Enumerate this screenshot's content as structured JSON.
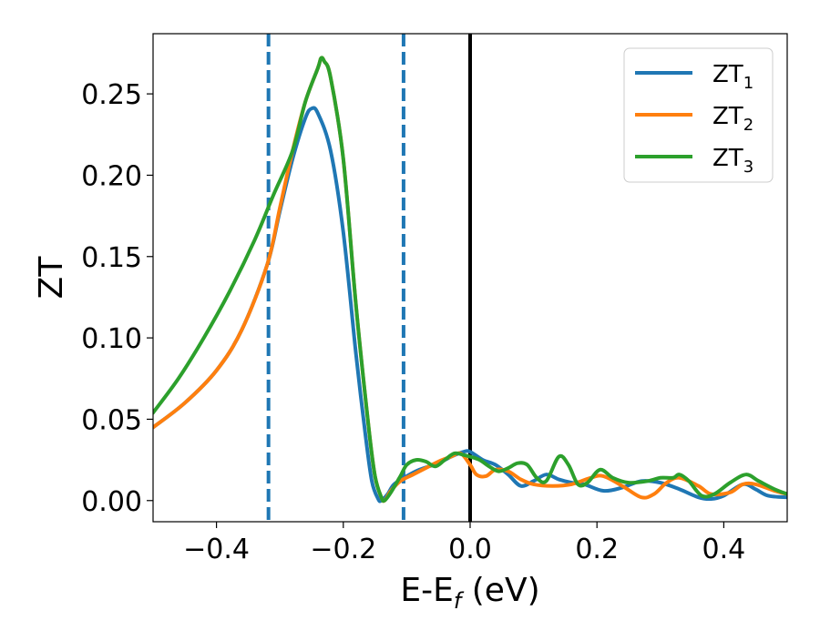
{
  "chart_data": {
    "type": "line",
    "title": "",
    "xlabel_main": "E-E",
    "xlabel_sub": "f",
    "xlabel_unit": " (eV)",
    "ylabel": "ZT",
    "xlim": [
      -0.5,
      0.5
    ],
    "ylim": [
      -0.013,
      0.287
    ],
    "x_ticks": [
      -0.4,
      -0.2,
      0.0,
      0.2,
      0.4
    ],
    "x_tick_labels": [
      "−0.4",
      "−0.2",
      "0.0",
      "0.2",
      "0.4"
    ],
    "y_ticks": [
      0.0,
      0.05,
      0.1,
      0.15,
      0.2,
      0.25
    ],
    "y_tick_labels": [
      "0.00",
      "0.05",
      "0.10",
      "0.15",
      "0.20",
      "0.25"
    ],
    "grid": false,
    "legend_position": "top-right",
    "reference_lines": [
      {
        "x": -0.318,
        "style": "dashed",
        "color": "#1f77b4"
      },
      {
        "x": -0.105,
        "style": "dashed",
        "color": "#1f77b4"
      },
      {
        "x": 0.0,
        "style": "solid",
        "color": "#000000"
      }
    ],
    "series": [
      {
        "name": "ZT",
        "sub": "1",
        "color": "#1f77b4",
        "points": [
          [
            -0.5,
            0.045
          ],
          [
            -0.45,
            0.06
          ],
          [
            -0.4,
            0.08
          ],
          [
            -0.36,
            0.105
          ],
          [
            -0.32,
            0.145
          ],
          [
            -0.3,
            0.178
          ],
          [
            -0.28,
            0.21
          ],
          [
            -0.26,
            0.235
          ],
          [
            -0.25,
            0.241
          ],
          [
            -0.24,
            0.238
          ],
          [
            -0.22,
            0.215
          ],
          [
            -0.2,
            0.165
          ],
          [
            -0.18,
            0.09
          ],
          [
            -0.165,
            0.04
          ],
          [
            -0.155,
            0.012
          ],
          [
            -0.145,
            0.001
          ],
          [
            -0.14,
            0.0
          ],
          [
            -0.13,
            0.004
          ],
          [
            -0.12,
            0.01
          ],
          [
            -0.1,
            0.015
          ],
          [
            -0.08,
            0.019
          ],
          [
            -0.05,
            0.023
          ],
          [
            -0.03,
            0.027
          ],
          [
            -0.01,
            0.03
          ],
          [
            0.0,
            0.03
          ],
          [
            0.02,
            0.025
          ],
          [
            0.04,
            0.022
          ],
          [
            0.06,
            0.016
          ],
          [
            0.08,
            0.009
          ],
          [
            0.1,
            0.012
          ],
          [
            0.12,
            0.016
          ],
          [
            0.14,
            0.013
          ],
          [
            0.16,
            0.011
          ],
          [
            0.18,
            0.01
          ],
          [
            0.21,
            0.006
          ],
          [
            0.24,
            0.008
          ],
          [
            0.27,
            0.012
          ],
          [
            0.3,
            0.011
          ],
          [
            0.33,
            0.007
          ],
          [
            0.36,
            0.002
          ],
          [
            0.38,
            0.001
          ],
          [
            0.4,
            0.003
          ],
          [
            0.43,
            0.01
          ],
          [
            0.45,
            0.007
          ],
          [
            0.47,
            0.003
          ],
          [
            0.5,
            0.002
          ]
        ]
      },
      {
        "name": "ZT",
        "sub": "2",
        "color": "#ff7f0e",
        "points": [
          [
            -0.5,
            0.045
          ],
          [
            -0.45,
            0.06
          ],
          [
            -0.4,
            0.08
          ],
          [
            -0.36,
            0.105
          ],
          [
            -0.32,
            0.145
          ],
          [
            -0.3,
            0.18
          ],
          [
            -0.28,
            0.215
          ],
          [
            -0.26,
            0.245
          ],
          [
            -0.24,
            0.266
          ],
          [
            -0.235,
            0.272
          ],
          [
            -0.23,
            0.27
          ],
          [
            -0.22,
            0.26
          ],
          [
            -0.2,
            0.21
          ],
          [
            -0.18,
            0.12
          ],
          [
            -0.16,
            0.045
          ],
          [
            -0.15,
            0.015
          ],
          [
            -0.14,
            0.002
          ],
          [
            -0.135,
            0.0
          ],
          [
            -0.125,
            0.006
          ],
          [
            -0.11,
            0.012
          ],
          [
            -0.09,
            0.016
          ],
          [
            -0.07,
            0.02
          ],
          [
            -0.05,
            0.024
          ],
          [
            -0.03,
            0.027
          ],
          [
            -0.015,
            0.029
          ],
          [
            0.0,
            0.022
          ],
          [
            0.01,
            0.016
          ],
          [
            0.025,
            0.015
          ],
          [
            0.04,
            0.019
          ],
          [
            0.06,
            0.018
          ],
          [
            0.08,
            0.013
          ],
          [
            0.1,
            0.01
          ],
          [
            0.13,
            0.009
          ],
          [
            0.16,
            0.01
          ],
          [
            0.19,
            0.014
          ],
          [
            0.21,
            0.015
          ],
          [
            0.24,
            0.009
          ],
          [
            0.27,
            0.002
          ],
          [
            0.29,
            0.004
          ],
          [
            0.31,
            0.011
          ],
          [
            0.33,
            0.014
          ],
          [
            0.36,
            0.009
          ],
          [
            0.38,
            0.004
          ],
          [
            0.41,
            0.005
          ],
          [
            0.43,
            0.01
          ],
          [
            0.45,
            0.01
          ],
          [
            0.48,
            0.006
          ],
          [
            0.5,
            0.004
          ]
        ]
      },
      {
        "name": "ZT",
        "sub": "3",
        "color": "#2ca02c",
        "points": [
          [
            -0.5,
            0.054
          ],
          [
            -0.46,
            0.075
          ],
          [
            -0.42,
            0.1
          ],
          [
            -0.38,
            0.128
          ],
          [
            -0.34,
            0.16
          ],
          [
            -0.31,
            0.188
          ],
          [
            -0.28,
            0.215
          ],
          [
            -0.26,
            0.245
          ],
          [
            -0.24,
            0.266
          ],
          [
            -0.235,
            0.272
          ],
          [
            -0.23,
            0.27
          ],
          [
            -0.22,
            0.26
          ],
          [
            -0.2,
            0.21
          ],
          [
            -0.18,
            0.12
          ],
          [
            -0.16,
            0.045
          ],
          [
            -0.15,
            0.015
          ],
          [
            -0.14,
            0.002
          ],
          [
            -0.135,
            0.0
          ],
          [
            -0.125,
            0.005
          ],
          [
            -0.11,
            0.015
          ],
          [
            -0.1,
            0.022
          ],
          [
            -0.085,
            0.025
          ],
          [
            -0.07,
            0.024
          ],
          [
            -0.055,
            0.021
          ],
          [
            -0.04,
            0.025
          ],
          [
            -0.025,
            0.029
          ],
          [
            -0.01,
            0.028
          ],
          [
            0.0,
            0.027
          ],
          [
            0.015,
            0.025
          ],
          [
            0.03,
            0.021
          ],
          [
            0.045,
            0.018
          ],
          [
            0.06,
            0.02
          ],
          [
            0.075,
            0.023
          ],
          [
            0.09,
            0.022
          ],
          [
            0.105,
            0.014
          ],
          [
            0.12,
            0.012
          ],
          [
            0.14,
            0.027
          ],
          [
            0.155,
            0.022
          ],
          [
            0.17,
            0.01
          ],
          [
            0.185,
            0.011
          ],
          [
            0.205,
            0.019
          ],
          [
            0.225,
            0.014
          ],
          [
            0.25,
            0.011
          ],
          [
            0.28,
            0.012
          ],
          [
            0.3,
            0.014
          ],
          [
            0.32,
            0.014
          ],
          [
            0.33,
            0.016
          ],
          [
            0.345,
            0.012
          ],
          [
            0.365,
            0.003
          ],
          [
            0.385,
            0.004
          ],
          [
            0.41,
            0.011
          ],
          [
            0.435,
            0.016
          ],
          [
            0.455,
            0.012
          ],
          [
            0.48,
            0.007
          ],
          [
            0.5,
            0.004
          ]
        ]
      }
    ]
  }
}
